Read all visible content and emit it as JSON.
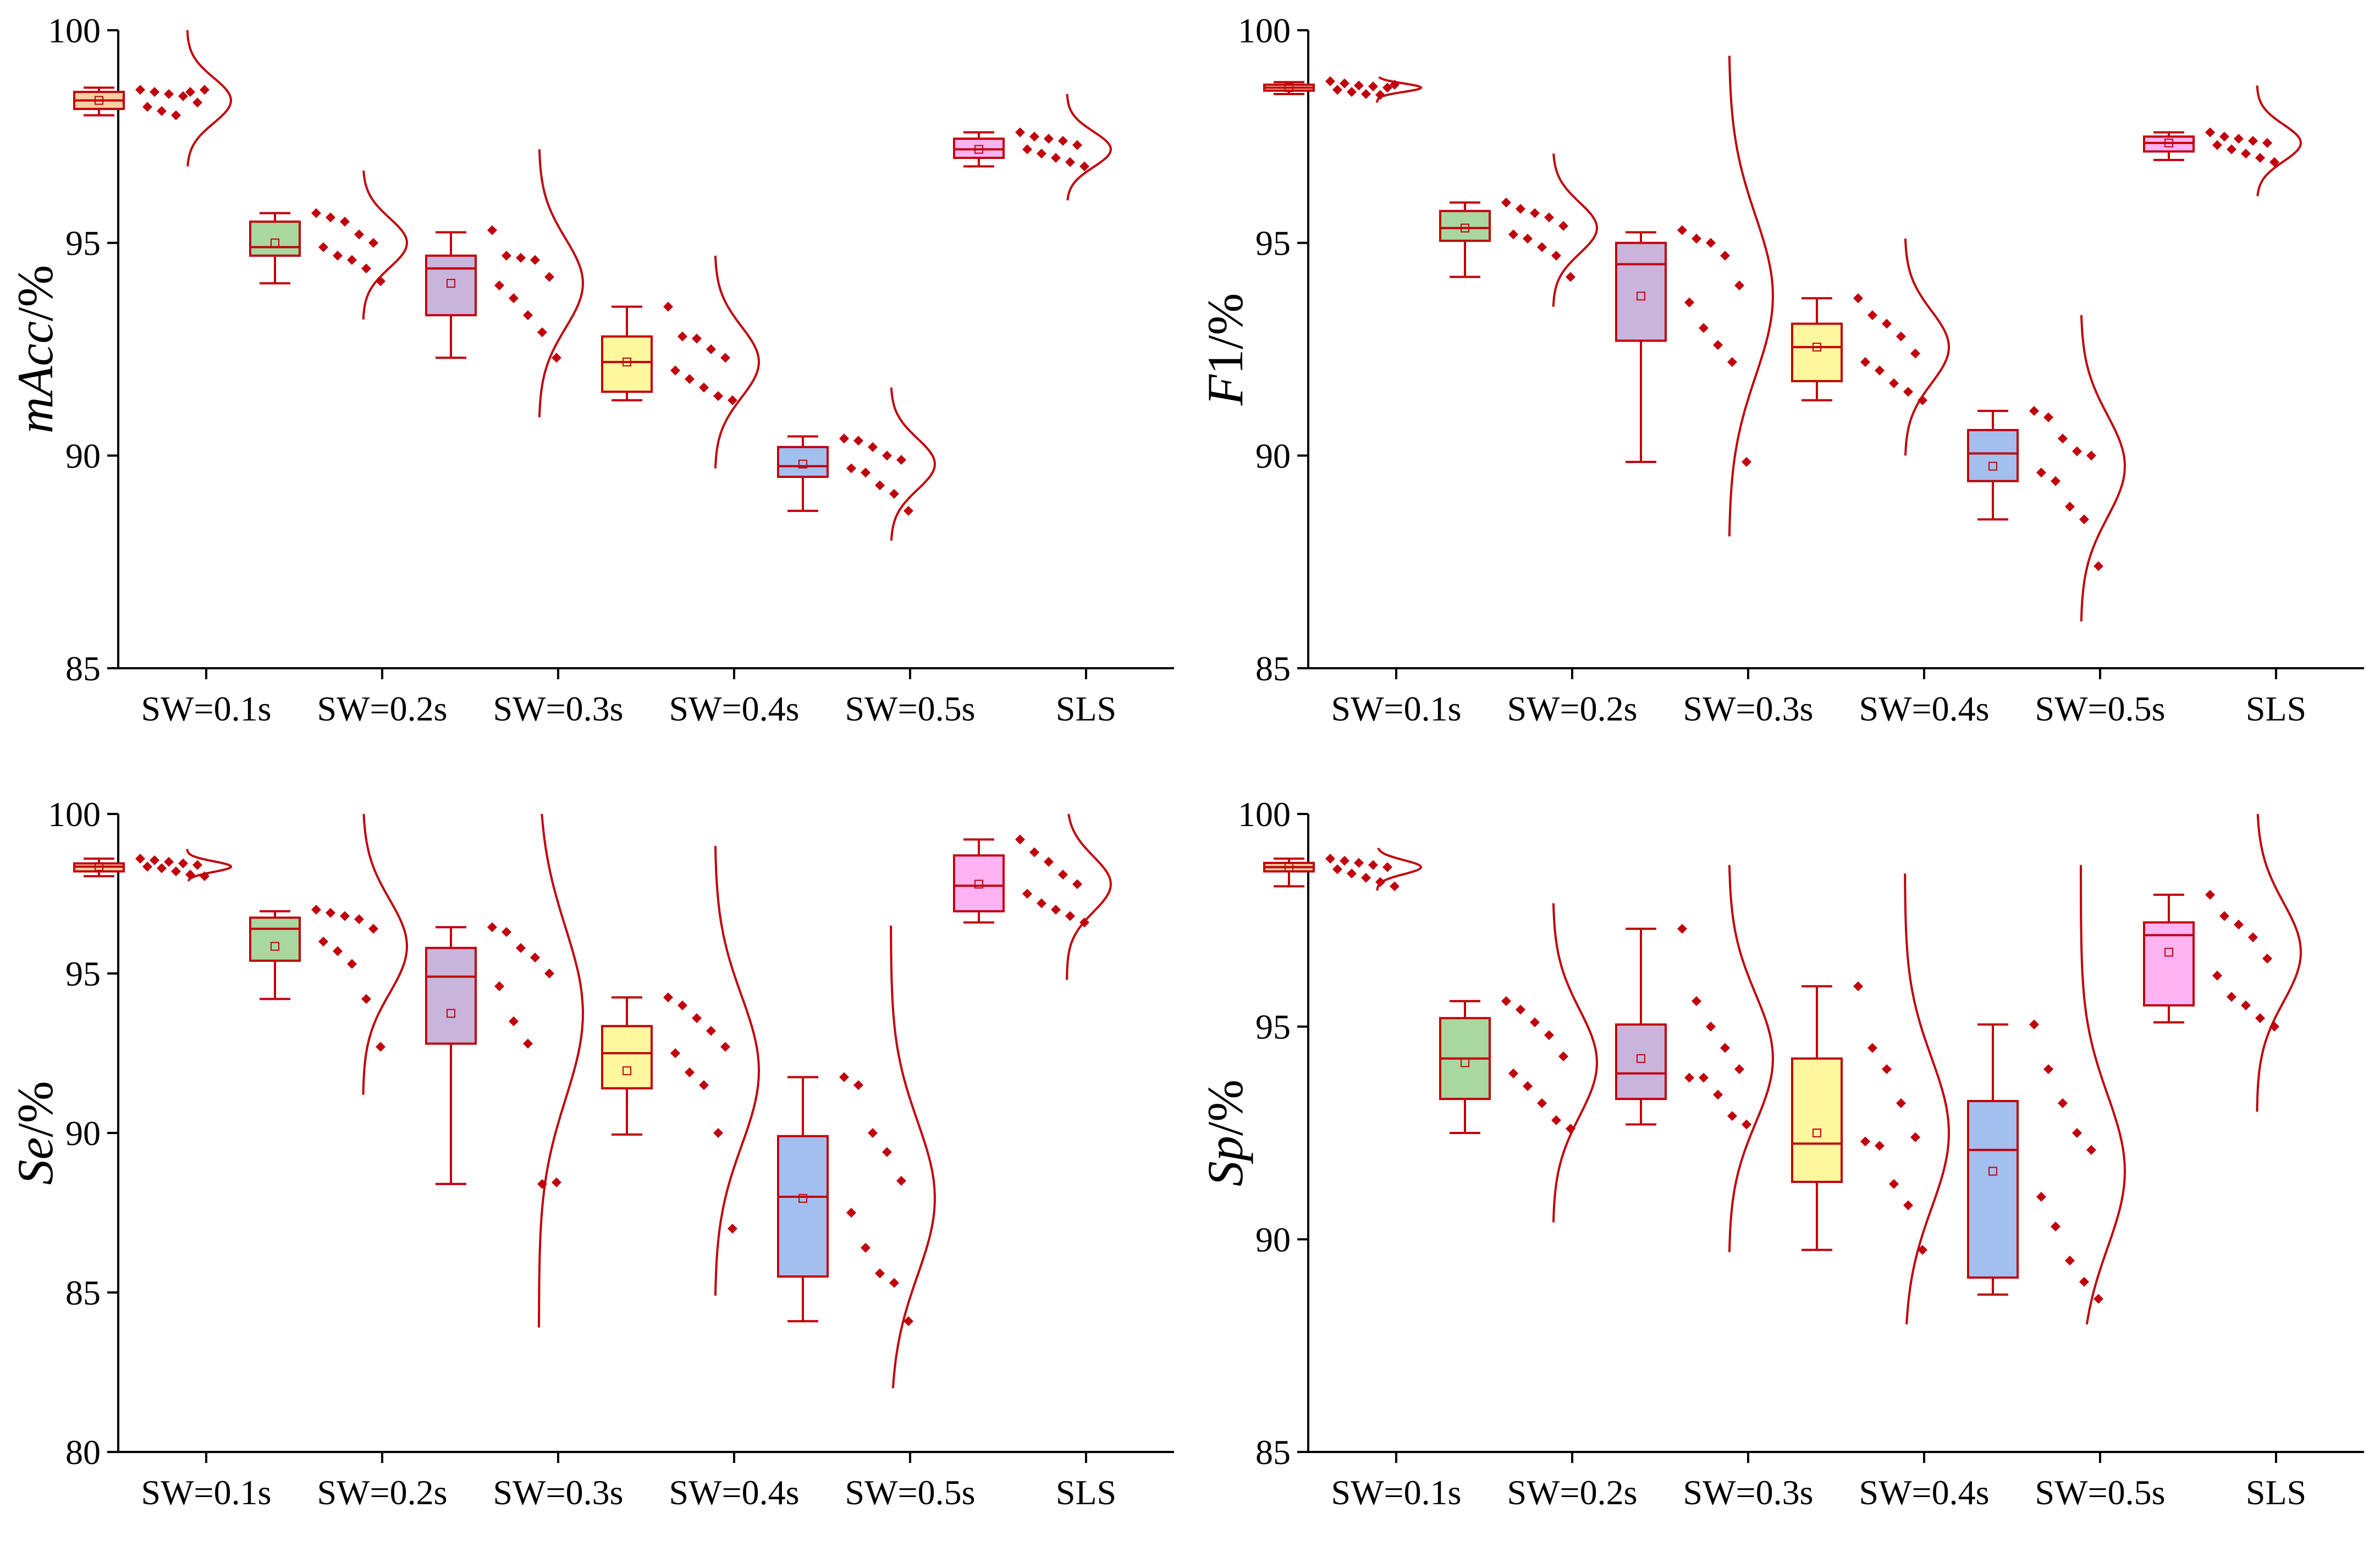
{
  "colors": {
    "stroke": "#C0000C",
    "point": "#C0000C",
    "box_fills": [
      "#F7CFA0",
      "#A8D8A0",
      "#C9B4DC",
      "#FFF79E",
      "#A3BFF0",
      "#FFB3F2"
    ]
  },
  "chart_data": [
    {
      "type": "box",
      "ylabel_italic": "mAcc",
      "ylabel_rest": "/%",
      "ylim": [
        85,
        100
      ],
      "yticks": [
        "85",
        "90",
        "95",
        "100"
      ],
      "categories": [
        "SW=0.1s",
        "SW=0.2s",
        "SW=0.3s",
        "SW=0.4s",
        "SW=0.5s",
        "SLS"
      ],
      "groups": [
        {
          "min": 98.0,
          "q1": 98.15,
          "median": 98.35,
          "q3": 98.55,
          "max": 98.65,
          "mean": 98.35,
          "points": [
            98.6,
            98.55,
            98.5,
            98.45,
            98.3,
            98.2,
            98.1,
            98.0,
            98.55,
            98.6
          ],
          "curve_top": 100.0,
          "curve_bottom": 96.8
        },
        {
          "min": 94.05,
          "q1": 94.7,
          "median": 94.9,
          "q3": 95.5,
          "max": 95.7,
          "mean": 95.0,
          "points": [
            95.7,
            95.6,
            95.5,
            95.2,
            95.0,
            94.9,
            94.7,
            94.6,
            94.4,
            94.1
          ],
          "curve_top": 96.7,
          "curve_bottom": 93.2
        },
        {
          "min": 92.3,
          "q1": 93.3,
          "median": 94.4,
          "q3": 94.7,
          "max": 95.25,
          "mean": 94.05,
          "points": [
            95.3,
            94.7,
            94.65,
            94.6,
            94.2,
            94.0,
            93.7,
            93.3,
            92.9,
            92.3
          ],
          "curve_top": 97.2,
          "curve_bottom": 90.9
        },
        {
          "min": 91.3,
          "q1": 91.5,
          "median": 92.2,
          "q3": 92.8,
          "max": 93.5,
          "mean": 92.2,
          "points": [
            93.5,
            92.8,
            92.75,
            92.5,
            92.3,
            92.0,
            91.8,
            91.6,
            91.4,
            91.3
          ],
          "curve_top": 94.7,
          "curve_bottom": 89.7
        },
        {
          "min": 88.7,
          "q1": 89.5,
          "median": 89.75,
          "q3": 90.2,
          "max": 90.45,
          "mean": 89.8,
          "points": [
            90.4,
            90.35,
            90.2,
            90.0,
            89.9,
            89.7,
            89.6,
            89.3,
            89.1,
            88.7
          ],
          "curve_top": 91.6,
          "curve_bottom": 88.0
        },
        {
          "min": 96.8,
          "q1": 97.0,
          "median": 97.2,
          "q3": 97.45,
          "max": 97.6,
          "mean": 97.2,
          "points": [
            97.6,
            97.5,
            97.45,
            97.4,
            97.3,
            97.2,
            97.1,
            97.0,
            96.9,
            96.8
          ],
          "curve_top": 98.5,
          "curve_bottom": 96.0
        }
      ]
    },
    {
      "type": "box",
      "ylabel_italic": "F",
      "ylabel_rest": "1/%",
      "ylim": [
        85,
        100
      ],
      "yticks": [
        "85",
        "90",
        "95",
        "100"
      ],
      "categories": [
        "SW=0.1s",
        "SW=0.2s",
        "SW=0.3s",
        "SW=0.4s",
        "SW=0.5s",
        "SLS"
      ],
      "groups": [
        {
          "min": 98.5,
          "q1": 98.58,
          "median": 98.65,
          "q3": 98.72,
          "max": 98.78,
          "mean": 98.65,
          "points": [
            98.8,
            98.75,
            98.7,
            98.68,
            98.65,
            98.6,
            98.55,
            98.5,
            98.48,
            98.72
          ],
          "curve_top": 98.9,
          "curve_bottom": 98.3
        },
        {
          "min": 94.2,
          "q1": 95.05,
          "median": 95.35,
          "q3": 95.75,
          "max": 95.95,
          "mean": 95.35,
          "points": [
            95.95,
            95.8,
            95.7,
            95.6,
            95.4,
            95.2,
            95.1,
            94.9,
            94.7,
            94.2
          ],
          "curve_top": 97.1,
          "curve_bottom": 93.5
        },
        {
          "min": 89.85,
          "q1": 92.7,
          "median": 94.5,
          "q3": 95.0,
          "max": 95.25,
          "mean": 93.75,
          "points": [
            95.3,
            95.1,
            95.0,
            94.7,
            94.0,
            93.6,
            93.0,
            92.6,
            92.2,
            89.85
          ],
          "curve_top": 99.4,
          "curve_bottom": 88.1
        },
        {
          "min": 91.3,
          "q1": 91.75,
          "median": 92.55,
          "q3": 93.1,
          "max": 93.7,
          "mean": 92.55,
          "points": [
            93.7,
            93.3,
            93.1,
            92.8,
            92.4,
            92.2,
            92.0,
            91.7,
            91.5,
            91.3
          ],
          "curve_top": 95.1,
          "curve_bottom": 90.0
        },
        {
          "min": 88.5,
          "q1": 89.4,
          "median": 90.05,
          "q3": 90.6,
          "max": 91.05,
          "mean": 89.75,
          "points": [
            91.05,
            90.9,
            90.4,
            90.1,
            90.0,
            89.6,
            89.4,
            88.8,
            88.5,
            87.4
          ],
          "curve_top": 93.3,
          "curve_bottom": 86.1
        },
        {
          "min": 96.95,
          "q1": 97.15,
          "median": 97.35,
          "q3": 97.5,
          "max": 97.6,
          "mean": 97.35,
          "points": [
            97.6,
            97.5,
            97.45,
            97.4,
            97.35,
            97.3,
            97.2,
            97.1,
            97.0,
            96.9
          ],
          "curve_top": 98.7,
          "curve_bottom": 96.1
        }
      ]
    },
    {
      "type": "box",
      "ylabel_italic": "Se",
      "ylabel_rest": "/%",
      "ylim": [
        80,
        100
      ],
      "yticks": [
        "80",
        "85",
        "90",
        "95",
        "100"
      ],
      "categories": [
        "SW=0.1s",
        "SW=0.2s",
        "SW=0.3s",
        "SW=0.4s",
        "SW=0.5s",
        "SLS"
      ],
      "groups": [
        {
          "min": 98.05,
          "q1": 98.2,
          "median": 98.35,
          "q3": 98.45,
          "max": 98.6,
          "mean": 98.35,
          "points": [
            98.6,
            98.55,
            98.5,
            98.45,
            98.4,
            98.35,
            98.3,
            98.2,
            98.1,
            98.05
          ],
          "curve_top": 98.9,
          "curve_bottom": 97.9
        },
        {
          "min": 94.2,
          "q1": 95.4,
          "median": 96.4,
          "q3": 96.75,
          "max": 96.95,
          "mean": 95.85,
          "points": [
            97.0,
            96.9,
            96.8,
            96.7,
            96.4,
            96.0,
            95.7,
            95.3,
            94.2,
            92.7
          ],
          "curve_top": 100.0,
          "curve_bottom": 91.2
        },
        {
          "min": 88.4,
          "q1": 92.8,
          "median": 94.9,
          "q3": 95.8,
          "max": 96.45,
          "mean": 93.75,
          "points": [
            96.45,
            96.3,
            95.8,
            95.5,
            95.0,
            94.6,
            93.5,
            92.8,
            88.4,
            88.45
          ],
          "curve_top": 100.0,
          "curve_bottom": 83.9
        },
        {
          "min": 89.95,
          "q1": 91.4,
          "median": 92.5,
          "q3": 93.35,
          "max": 94.25,
          "mean": 91.95,
          "points": [
            94.25,
            94.0,
            93.6,
            93.2,
            92.7,
            92.5,
            91.9,
            91.5,
            90.0,
            87.0
          ],
          "curve_top": 99.0,
          "curve_bottom": 84.9
        },
        {
          "min": 84.1,
          "q1": 85.5,
          "median": 88.0,
          "q3": 89.9,
          "max": 91.75,
          "mean": 87.95,
          "points": [
            91.75,
            91.5,
            90.0,
            89.4,
            88.5,
            87.5,
            86.4,
            85.6,
            85.3,
            84.1
          ],
          "curve_top": 96.5,
          "curve_bottom": 82.0
        },
        {
          "min": 96.6,
          "q1": 96.95,
          "median": 97.75,
          "q3": 98.7,
          "max": 99.2,
          "mean": 97.8,
          "points": [
            99.2,
            98.8,
            98.5,
            98.1,
            97.8,
            97.5,
            97.2,
            97.0,
            96.8,
            96.6
          ],
          "curve_top": 100.0,
          "curve_bottom": 94.8
        }
      ]
    },
    {
      "type": "box",
      "ylabel_italic": "Sp",
      "ylabel_rest": "/%",
      "ylim": [
        85,
        100
      ],
      "yticks": [
        "85",
        "90",
        "95",
        "100"
      ],
      "categories": [
        "SW=0.1s",
        "SW=0.2s",
        "SW=0.3s",
        "SW=0.4s",
        "SW=0.5s",
        "SLS"
      ],
      "groups": [
        {
          "min": 98.3,
          "q1": 98.65,
          "median": 98.75,
          "q3": 98.85,
          "max": 98.95,
          "mean": 98.75,
          "points": [
            98.95,
            98.9,
            98.85,
            98.8,
            98.75,
            98.7,
            98.6,
            98.5,
            98.4,
            98.3
          ],
          "curve_top": 99.2,
          "curve_bottom": 98.2
        },
        {
          "min": 92.5,
          "q1": 93.3,
          "median": 94.25,
          "q3": 95.2,
          "max": 95.6,
          "mean": 94.15,
          "points": [
            95.6,
            95.4,
            95.1,
            94.8,
            94.3,
            93.9,
            93.6,
            93.2,
            92.8,
            92.6
          ],
          "curve_top": 97.9,
          "curve_bottom": 90.4
        },
        {
          "min": 92.7,
          "q1": 93.3,
          "median": 93.9,
          "q3": 95.05,
          "max": 97.3,
          "mean": 94.25,
          "points": [
            97.3,
            95.6,
            95.0,
            94.5,
            94.0,
            93.8,
            93.8,
            93.4,
            92.9,
            92.7
          ],
          "curve_top": 98.8,
          "curve_bottom": 89.7
        },
        {
          "min": 89.75,
          "q1": 91.35,
          "median": 92.25,
          "q3": 94.25,
          "max": 95.95,
          "mean": 92.5,
          "points": [
            95.95,
            94.5,
            94.0,
            93.2,
            92.4,
            92.3,
            92.2,
            91.3,
            90.8,
            89.75
          ],
          "curve_top": 98.6,
          "curve_bottom": 88.0
        },
        {
          "min": 88.7,
          "q1": 89.1,
          "median": 92.1,
          "q3": 93.25,
          "max": 95.05,
          "mean": 91.6,
          "points": [
            95.05,
            94.0,
            93.2,
            92.5,
            92.1,
            91.0,
            90.3,
            89.5,
            89.0,
            88.6
          ],
          "curve_top": 98.8,
          "curve_bottom": 88.0
        },
        {
          "min": 95.1,
          "q1": 95.5,
          "median": 97.15,
          "q3": 97.45,
          "max": 98.1,
          "mean": 96.75,
          "points": [
            98.1,
            97.6,
            97.4,
            97.1,
            96.6,
            96.2,
            95.7,
            95.5,
            95.2,
            95.0
          ],
          "curve_top": 100.0,
          "curve_bottom": 93.0
        }
      ]
    }
  ]
}
